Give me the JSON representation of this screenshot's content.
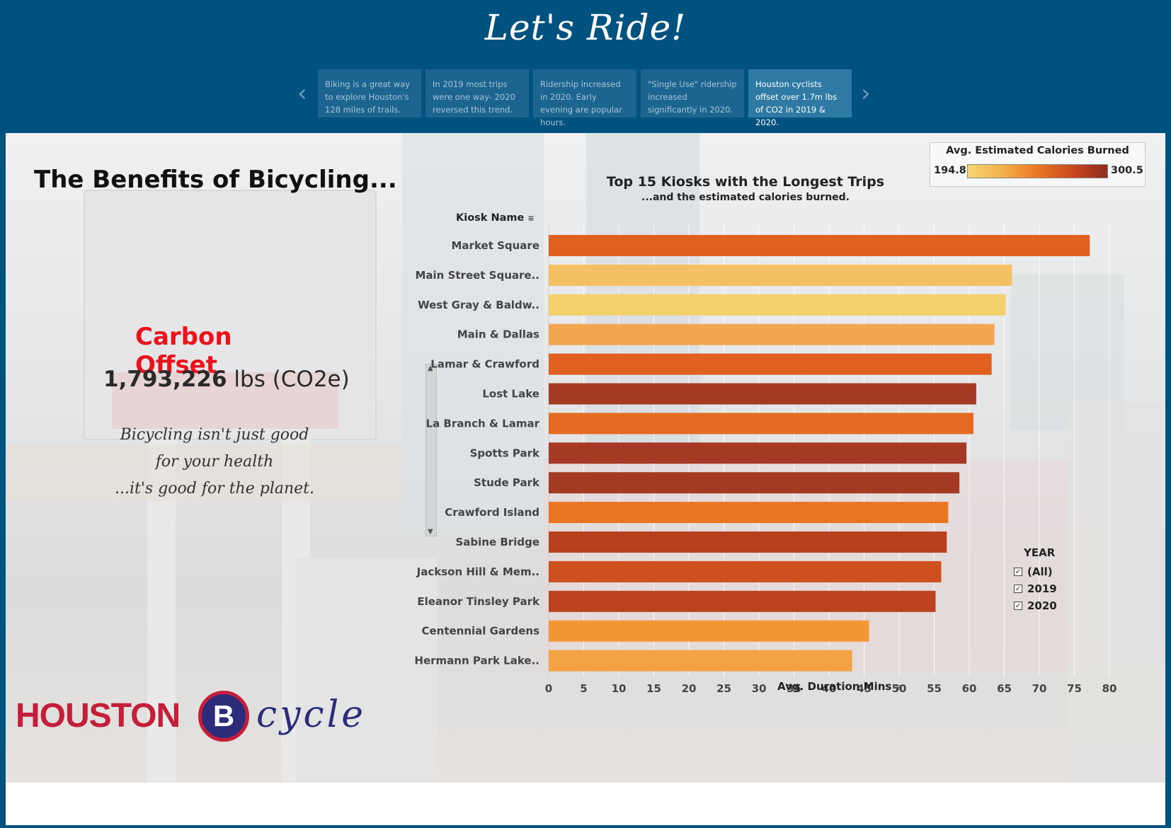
{
  "header": {
    "title": "Let's Ride!"
  },
  "story": {
    "points": [
      {
        "text": "Biking is a great way to explore Houston's 128 miles of trails.",
        "active": false
      },
      {
        "text": "In 2019 most trips were one way- 2020 reversed this trend.",
        "active": false
      },
      {
        "text": "Ridership increased in 2020. Early evening are popular hours.",
        "active": false
      },
      {
        "text": "\"Single Use\" ridership increased significantly in 2020.",
        "active": false
      },
      {
        "text": "Houston cyclists offset over 1.7m  lbs of CO2 in 2019 & 2020.",
        "active": true
      }
    ]
  },
  "left": {
    "title": "The Benefits of Bicycling...",
    "carbon_title": "Carbon Offset",
    "carbon_value": "1,793,226",
    "carbon_unit": " lbs (CO2e)",
    "tagline": [
      "Bicycling isn't just good",
      "for your health",
      "...it's good for the planet."
    ],
    "logo": {
      "word": "HOUSTON",
      "letter": "B",
      "script": "cycle"
    }
  },
  "legend": {
    "title": "Avg. Estimated Calories Burned",
    "min": "194.8",
    "max": "300.5",
    "colors": [
      "#f6d572",
      "#f3b24a",
      "#ea7622",
      "#c9481f",
      "#8e2b1f"
    ]
  },
  "filter": {
    "title": "YEAR",
    "options": [
      {
        "label": "(All)",
        "checked": true
      },
      {
        "label": "2019",
        "checked": true
      },
      {
        "label": "2020",
        "checked": true
      }
    ]
  },
  "chart_data": {
    "type": "bar",
    "orientation": "horizontal",
    "title": "Top 15 Kiosks with the Longest Trips",
    "subtitle": "...and the estimated calories burned.",
    "ylabel": "Kiosk Name",
    "xlabel": "Avg. Duration Mins",
    "xlim": [
      0,
      82
    ],
    "xticks": [
      0,
      5,
      10,
      15,
      20,
      25,
      30,
      35,
      40,
      45,
      50,
      55,
      60,
      65,
      70,
      75,
      80
    ],
    "categories": [
      "Market Square",
      "Main Street Square..",
      "West Gray & Baldw..",
      "Main & Dallas",
      "Lamar & Crawford",
      "Lost Lake",
      "La Branch & Lamar",
      "Spotts Park",
      "Stude Park",
      "Crawford Island",
      "Sabine Bridge",
      "Jackson Hill & Mem..",
      "Eleanor Tinsley Park",
      "Centennial Gardens",
      "Hermann Park Lake.."
    ],
    "values": [
      77.2,
      66.1,
      65.2,
      63.6,
      63.2,
      61.0,
      60.6,
      59.6,
      58.6,
      57.0,
      56.8,
      56.0,
      55.2,
      45.7,
      43.3
    ],
    "colors": [
      "#e0601f",
      "#f4c061",
      "#f4d06c",
      "#f2a850",
      "#e0601f",
      "#a53a24",
      "#e56a22",
      "#a53a24",
      "#a53a24",
      "#ea7422",
      "#b8421f",
      "#cf4f1f",
      "#bc421f",
      "#f39634",
      "#f3a244"
    ],
    "grid": "vertical"
  }
}
